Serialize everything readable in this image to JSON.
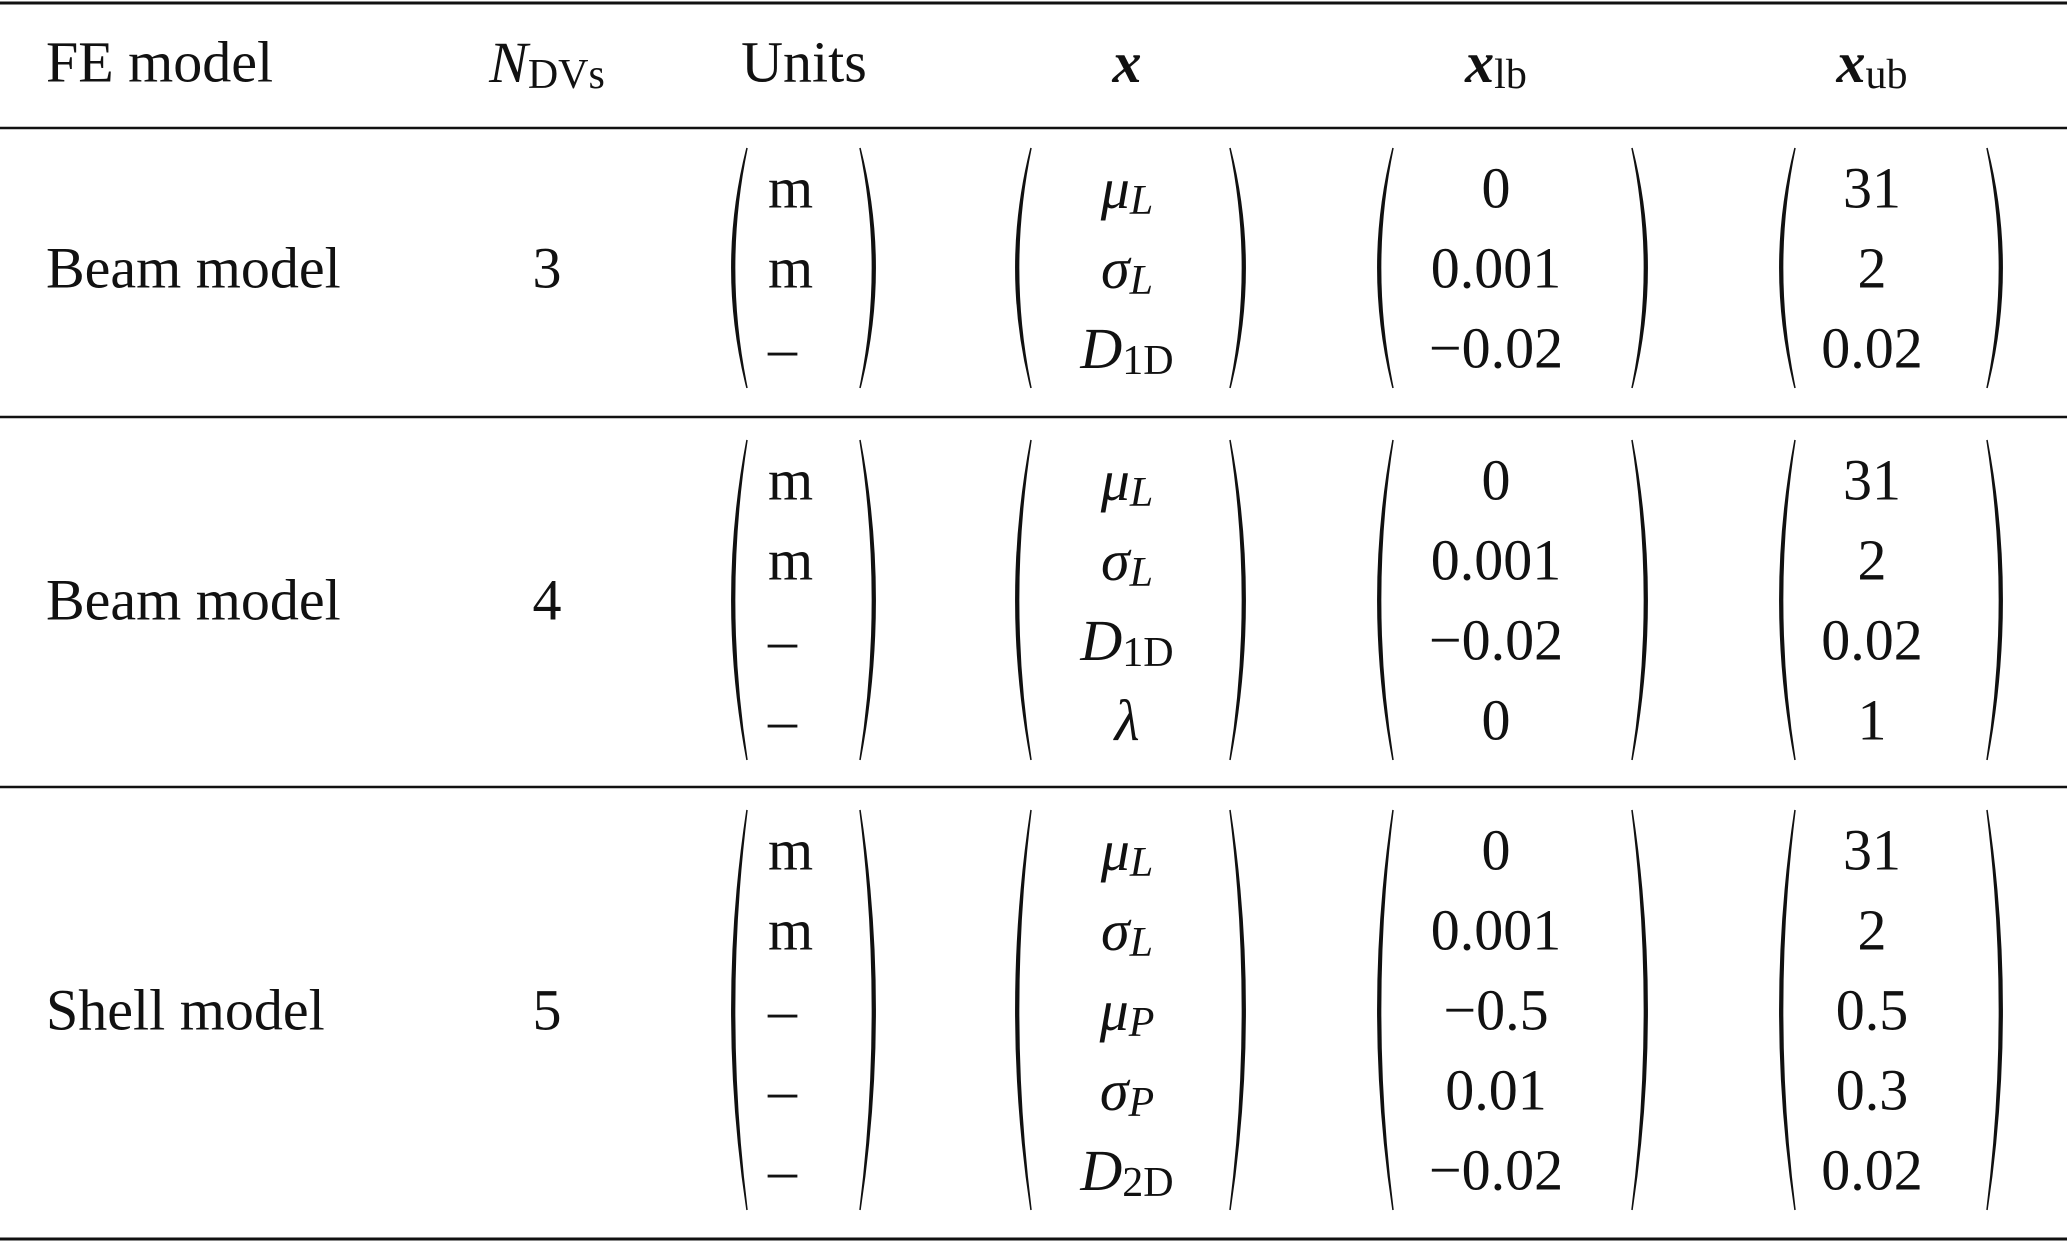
{
  "header": [
    "FE model",
    {
      "base": "N",
      "sub": "DVs"
    },
    "Units",
    {
      "base": "x"
    },
    {
      "base": "x",
      "sub": "lb"
    },
    {
      "base": "x",
      "sub": "ub"
    }
  ],
  "rows": [
    {
      "model": "Beam model",
      "n_dvs": "3",
      "units": [
        "m",
        "m",
        "–"
      ],
      "x": [
        {
          "base": "μ",
          "sub": "L"
        },
        {
          "base": "σ",
          "sub": "L"
        },
        {
          "base": "D",
          "sub": "1D"
        }
      ],
      "lb": [
        "0",
        "0.001",
        "−0.02"
      ],
      "ub": [
        "31",
        "2",
        "0.02"
      ]
    },
    {
      "model": "Beam model",
      "n_dvs": "4",
      "units": [
        "m",
        "m",
        "–",
        "–"
      ],
      "x": [
        {
          "base": "μ",
          "sub": "L"
        },
        {
          "base": "σ",
          "sub": "L"
        },
        {
          "base": "D",
          "sub": "1D"
        },
        {
          "base": "λ"
        }
      ],
      "lb": [
        "0",
        "0.001",
        "−0.02",
        "0"
      ],
      "ub": [
        "31",
        "2",
        "0.02",
        "1"
      ]
    },
    {
      "model": "Shell model",
      "n_dvs": "5",
      "units": [
        "m",
        "m",
        "–",
        "–",
        "–"
      ],
      "x": [
        {
          "base": "μ",
          "sub": "L"
        },
        {
          "base": "σ",
          "sub": "L"
        },
        {
          "base": "μ",
          "sub": "P"
        },
        {
          "base": "σ",
          "sub": "P"
        },
        {
          "base": "D",
          "sub": "2D"
        }
      ],
      "lb": [
        "0",
        "0.001",
        "−0.5",
        "0.01",
        "−0.02"
      ],
      "ub": [
        "31",
        "2",
        "0.5",
        "0.3",
        "0.02"
      ]
    }
  ]
}
